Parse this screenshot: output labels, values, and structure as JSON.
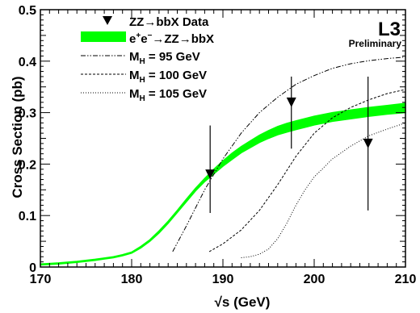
{
  "chart_data": {
    "type": "line",
    "xlabel": "√s (GeV)",
    "ylabel": "Cross Section (pb)",
    "xlim": [
      170,
      210
    ],
    "ylim": [
      0,
      0.5
    ],
    "x_ticks": [
      170,
      180,
      190,
      200,
      210
    ],
    "y_ticks": [
      0,
      0.1,
      0.2,
      0.3,
      0.4,
      0.5
    ],
    "experiment_label": "L3",
    "status_label": "Preliminary",
    "legend": {
      "position": "top-left",
      "entries": [
        {
          "kind": "marker",
          "label": "ZZ→bbX Data"
        },
        {
          "kind": "band",
          "label": "e+e−→ZZ→bbX"
        },
        {
          "kind": "line",
          "label": "MH = 95 GeV",
          "style": "dash-dot-dot"
        },
        {
          "kind": "line",
          "label": "MH = 100 GeV",
          "style": "dashed"
        },
        {
          "kind": "line",
          "label": "MH = 105 GeV",
          "style": "dotted"
        }
      ]
    },
    "data_points": {
      "name": "ZZ→bbX Data",
      "x": [
        188.6,
        197.5,
        205.9
      ],
      "y": [
        0.18,
        0.32,
        0.24
      ],
      "y_low": [
        0.105,
        0.23,
        0.11
      ],
      "y_high": [
        0.275,
        0.37,
        0.37
      ]
    },
    "band": {
      "name": "e+e−→ZZ→bbX",
      "color": "#00ff00",
      "x": [
        170,
        172,
        174,
        176,
        178,
        179,
        180,
        181,
        182,
        183,
        184,
        185,
        186,
        187,
        188,
        189,
        190,
        191,
        192,
        193,
        194,
        195,
        196,
        197,
        198,
        200,
        202,
        204,
        206,
        208,
        210
      ],
      "lower": [
        0.004,
        0.006,
        0.009,
        0.013,
        0.018,
        0.022,
        0.027,
        0.037,
        0.05,
        0.066,
        0.085,
        0.106,
        0.127,
        0.148,
        0.166,
        0.181,
        0.196,
        0.209,
        0.222,
        0.232,
        0.242,
        0.25,
        0.257,
        0.262,
        0.267,
        0.276,
        0.283,
        0.288,
        0.293,
        0.297,
        0.3
      ],
      "upper": [
        0.006,
        0.008,
        0.011,
        0.015,
        0.02,
        0.024,
        0.029,
        0.04,
        0.053,
        0.07,
        0.089,
        0.11,
        0.132,
        0.153,
        0.172,
        0.19,
        0.206,
        0.221,
        0.234,
        0.245,
        0.256,
        0.265,
        0.273,
        0.279,
        0.284,
        0.293,
        0.3,
        0.305,
        0.31,
        0.314,
        0.318
      ]
    },
    "curves": [
      {
        "name": "MH = 95 GeV",
        "style": "dash-dot-dot",
        "x": [
          184.5,
          186,
          188,
          190,
          192,
          194,
          196,
          198,
          200,
          202,
          204,
          206,
          208,
          210
        ],
        "y": [
          0.03,
          0.08,
          0.15,
          0.21,
          0.26,
          0.3,
          0.33,
          0.355,
          0.372,
          0.386,
          0.395,
          0.401,
          0.405,
          0.408
        ]
      },
      {
        "name": "MH = 100 GeV",
        "style": "dashed",
        "x": [
          188.5,
          190,
          192,
          194,
          196,
          198,
          200,
          202,
          204,
          206,
          208,
          210
        ],
        "y": [
          0.03,
          0.045,
          0.072,
          0.11,
          0.16,
          0.215,
          0.26,
          0.29,
          0.31,
          0.325,
          0.337,
          0.345
        ]
      },
      {
        "name": "MH = 105 GeV",
        "style": "dotted",
        "x": [
          192,
          193,
          194,
          195,
          196,
          197,
          198,
          199,
          200,
          202,
          204,
          206,
          208,
          210
        ],
        "y": [
          0.018,
          0.02,
          0.025,
          0.035,
          0.055,
          0.085,
          0.12,
          0.15,
          0.175,
          0.21,
          0.235,
          0.255,
          0.268,
          0.28
        ]
      }
    ]
  }
}
